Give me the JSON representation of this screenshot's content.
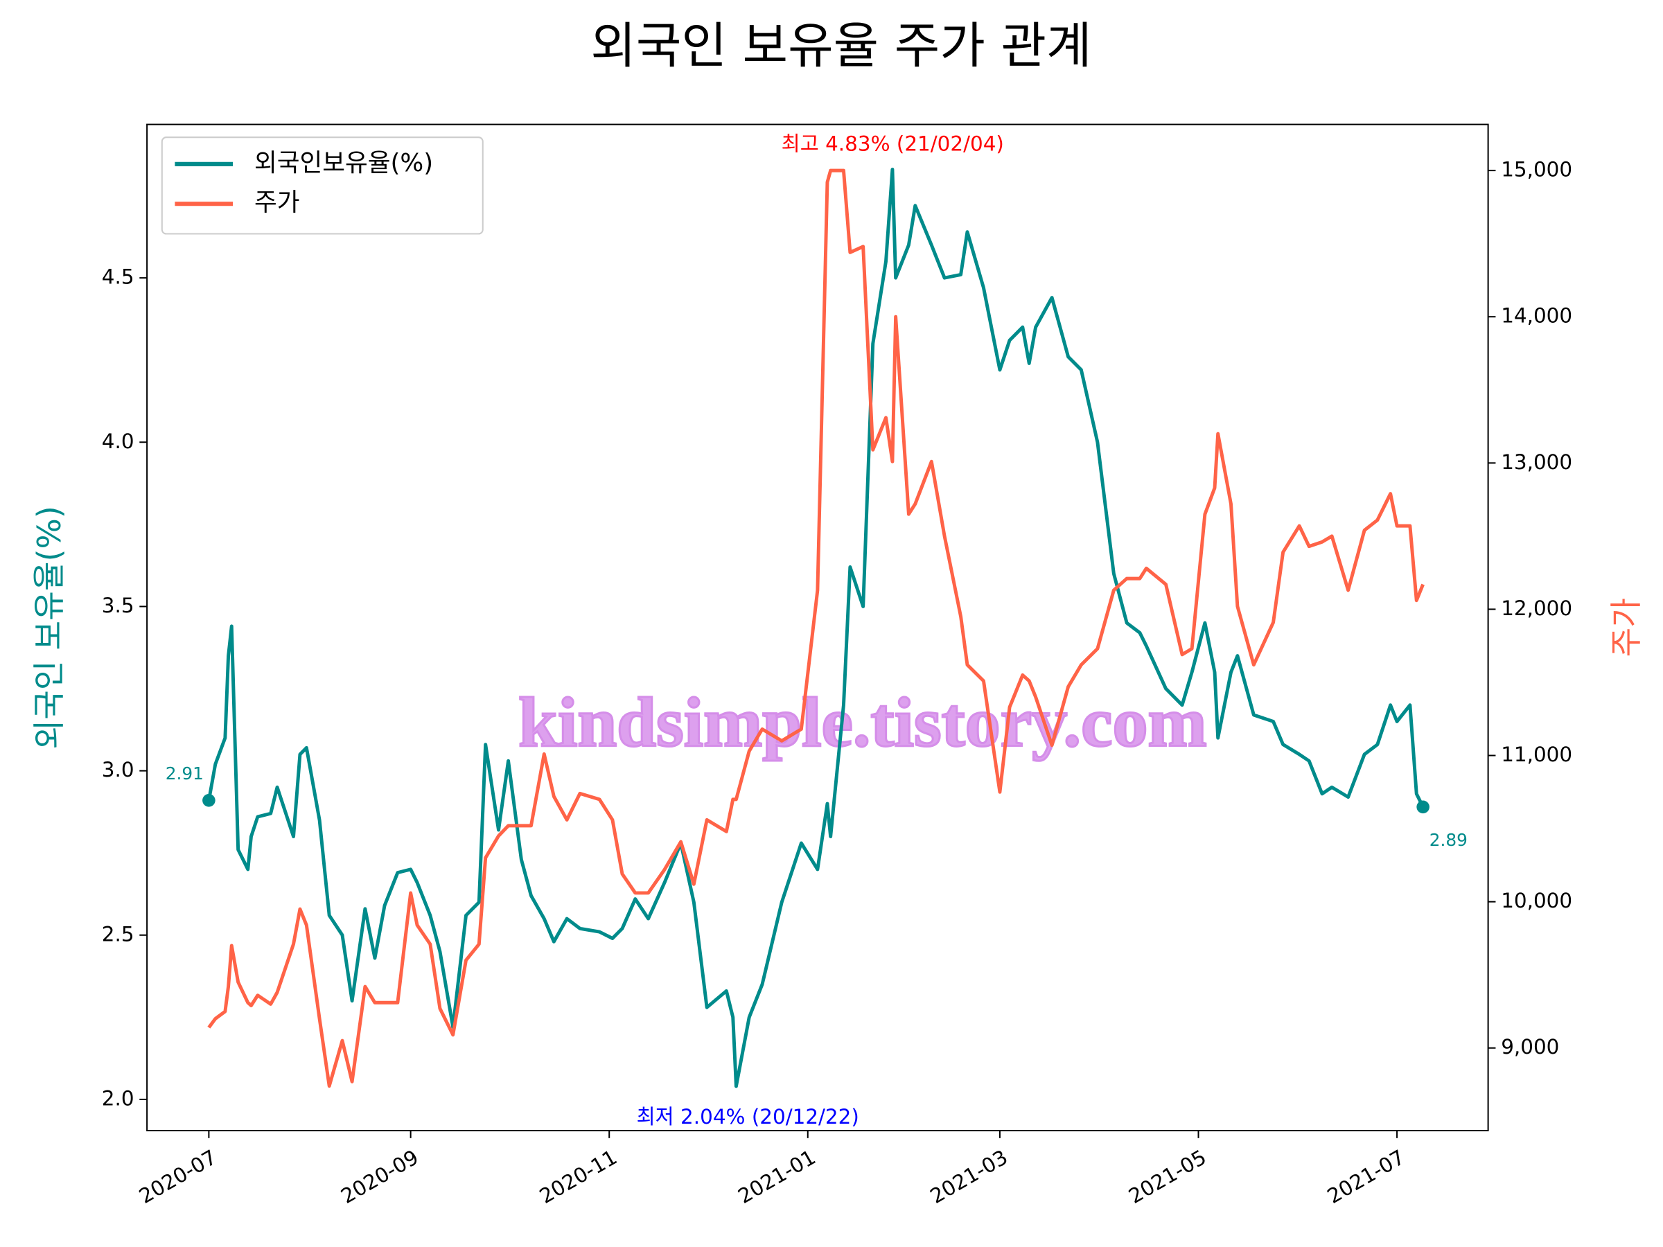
{
  "chart_data": {
    "type": "line",
    "title": "외국인 보유율 주가 관계",
    "ylabel": "외국인 보유율(%)",
    "y2label": "주가",
    "watermark": "kindsimple.tistory.com",
    "legend": "upper left",
    "x": [
      "2020-07-01",
      "2020-07-03",
      "2020-07-06",
      "2020-07-07",
      "2020-07-08",
      "2020-07-10",
      "2020-07-13",
      "2020-07-14",
      "2020-07-16",
      "2020-07-20",
      "2020-07-22",
      "2020-07-27",
      "2020-07-29",
      "2020-07-31",
      "2020-08-04",
      "2020-08-07",
      "2020-08-11",
      "2020-08-14",
      "2020-08-18",
      "2020-08-21",
      "2020-08-24",
      "2020-08-28",
      "2020-09-01",
      "2020-09-03",
      "2020-09-07",
      "2020-09-10",
      "2020-09-14",
      "2020-09-18",
      "2020-09-22",
      "2020-09-24",
      "2020-09-28",
      "2020-10-01",
      "2020-10-05",
      "2020-10-08",
      "2020-10-12",
      "2020-10-15",
      "2020-10-19",
      "2020-10-23",
      "2020-10-29",
      "2020-11-02",
      "2020-11-05",
      "2020-11-09",
      "2020-11-13",
      "2020-11-18",
      "2020-11-23",
      "2020-11-27",
      "2020-12-01",
      "2020-12-07",
      "2020-12-09",
      "2020-12-10",
      "2020-12-14",
      "2020-12-18",
      "2020-12-24",
      "2020-12-30",
      "2021-01-04",
      "2021-01-07",
      "2021-01-08",
      "2021-01-12",
      "2021-01-14",
      "2021-01-18",
      "2021-01-21",
      "2021-01-25",
      "2021-01-27",
      "2021-01-28",
      "2021-02-01",
      "2021-02-03",
      "2021-02-08",
      "2021-02-12",
      "2021-02-17",
      "2021-02-19",
      "2021-02-24",
      "2021-03-01",
      "2021-03-04",
      "2021-03-08",
      "2021-03-10",
      "2021-03-12",
      "2021-03-17",
      "2021-03-22",
      "2021-03-26",
      "2021-03-31",
      "2021-04-05",
      "2021-04-09",
      "2021-04-13",
      "2021-04-15",
      "2021-04-21",
      "2021-04-26",
      "2021-04-29",
      "2021-05-03",
      "2021-05-06",
      "2021-05-07",
      "2021-05-11",
      "2021-05-13",
      "2021-05-18",
      "2021-05-24",
      "2021-05-27",
      "2021-06-01",
      "2021-06-04",
      "2021-06-08",
      "2021-06-11",
      "2021-06-16",
      "2021-06-21",
      "2021-06-25",
      "2021-06-29",
      "2021-07-01",
      "2021-07-05",
      "2021-07-07",
      "2021-07-09"
    ],
    "series": [
      {
        "name": "외국인보유율(%)",
        "color": "#008b8b",
        "values": [
          2.91,
          3.02,
          3.1,
          3.35,
          3.44,
          2.76,
          2.7,
          2.8,
          2.86,
          2.87,
          2.95,
          2.8,
          3.05,
          3.07,
          2.85,
          2.56,
          2.5,
          2.3,
          2.58,
          2.43,
          2.59,
          2.69,
          2.7,
          2.66,
          2.56,
          2.45,
          2.22,
          2.56,
          2.6,
          3.08,
          2.82,
          3.03,
          2.73,
          2.62,
          2.55,
          2.48,
          2.55,
          2.52,
          2.51,
          2.49,
          2.52,
          2.61,
          2.55,
          2.66,
          2.78,
          2.6,
          2.28,
          2.33,
          2.25,
          2.04,
          2.25,
          2.35,
          2.6,
          2.78,
          2.7,
          2.9,
          2.8,
          3.2,
          3.62,
          3.5,
          4.3,
          4.55,
          4.83,
          4.5,
          4.6,
          4.72,
          4.6,
          4.5,
          4.51,
          4.64,
          4.47,
          4.22,
          4.31,
          4.35,
          4.24,
          4.35,
          4.44,
          4.26,
          4.22,
          4.0,
          3.6,
          3.45,
          3.42,
          3.38,
          3.25,
          3.2,
          3.3,
          3.45,
          3.3,
          3.1,
          3.3,
          3.35,
          3.17,
          3.15,
          3.08,
          3.05,
          3.03,
          2.93,
          2.95,
          2.92,
          3.05,
          3.08,
          3.2,
          3.15,
          3.2,
          2.93,
          2.89
        ]
      },
      {
        "name": "주가",
        "color": "#ff6347",
        "axis": "y2",
        "values": [
          9140,
          9200,
          9250,
          9420,
          9700,
          9450,
          9310,
          9290,
          9360,
          9300,
          9380,
          9710,
          9950,
          9840,
          9200,
          8740,
          9050,
          8770,
          9420,
          9310,
          9310,
          9310,
          10060,
          9840,
          9710,
          9270,
          9090,
          9600,
          9710,
          10300,
          10450,
          10520,
          10520,
          10520,
          11010,
          10720,
          10560,
          10740,
          10700,
          10560,
          10190,
          10060,
          10060,
          10220,
          10410,
          10120,
          10560,
          10480,
          10700,
          10700,
          11030,
          11180,
          11100,
          11180,
          12130,
          14920,
          15000,
          15000,
          14440,
          14480,
          13090,
          13310,
          13010,
          14000,
          12650,
          12720,
          13010,
          12500,
          11950,
          11620,
          11510,
          10750,
          11330,
          11550,
          11510,
          11400,
          11070,
          11470,
          11620,
          11730,
          12130,
          12210,
          12210,
          12280,
          12170,
          11690,
          11730,
          12650,
          12830,
          13200,
          12720,
          12020,
          11620,
          11910,
          12390,
          12570,
          12430,
          12460,
          12500,
          12130,
          12540,
          12610,
          12790,
          12570,
          12570,
          12060,
          12170
        ]
      }
    ],
    "annotations": [
      {
        "text": "최고 4.83% (21/02/04)",
        "color": "#ff0000"
      },
      {
        "text": "최저 2.04% (20/12/22)",
        "color": "#0000ff"
      },
      {
        "text": "2.91",
        "color": "#008b8b"
      },
      {
        "text": "2.89",
        "color": "#008b8b"
      }
    ],
    "xlim": [
      "2020-06-12",
      "2021-07-29"
    ],
    "xticks": [
      {
        "value": "2020-07-01",
        "label": "2020-07"
      },
      {
        "value": "2020-09-01",
        "label": "2020-09"
      },
      {
        "value": "2020-11-01",
        "label": "2020-11"
      },
      {
        "value": "2021-01-01",
        "label": "2021-01"
      },
      {
        "value": "2021-03-01",
        "label": "2021-03"
      },
      {
        "value": "2021-05-01",
        "label": "2021-05"
      },
      {
        "value": "2021-07-01",
        "label": "2021-07"
      }
    ],
    "ylim": [
      1.905,
      4.967
    ],
    "yticks": [
      {
        "value": 2,
        "label": "2.0"
      },
      {
        "value": 2.5,
        "label": "2.5"
      },
      {
        "value": 3,
        "label": "3.0"
      },
      {
        "value": 3.5,
        "label": "3.5"
      },
      {
        "value": 4,
        "label": "4.0"
      },
      {
        "value": 4.5,
        "label": "4.5"
      }
    ],
    "y2lim": [
      8435,
      15315
    ],
    "y2ticks": [
      {
        "value": 9000,
        "label": "9,000"
      },
      {
        "value": 10000,
        "label": "10,000"
      },
      {
        "value": 11000,
        "label": "11,000"
      },
      {
        "value": 12000,
        "label": "12,000"
      },
      {
        "value": 13000,
        "label": "13,000"
      },
      {
        "value": 14000,
        "label": "14,000"
      },
      {
        "value": 15000,
        "label": "15,000"
      }
    ]
  }
}
